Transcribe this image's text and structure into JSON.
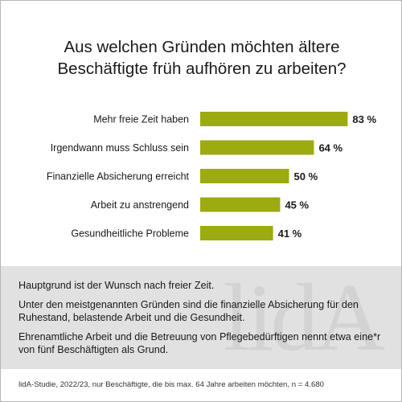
{
  "title": {
    "line1": "Aus welchen Gründen möchten ältere",
    "line2": "Beschäftigte früh aufhören zu arbeiten?"
  },
  "chart_data": {
    "type": "bar",
    "orientation": "horizontal",
    "categories": [
      "Mehr freie Zeit haben",
      "Irgendwann muss Schluss sein",
      "Finanzielle Absicherung erreicht",
      "Arbeit zu anstrengend",
      "Gesundheitliche Probleme"
    ],
    "values": [
      83,
      64,
      50,
      45,
      41
    ],
    "value_labels": [
      "83 %",
      "64 %",
      "50 %",
      "45 %",
      "41 %"
    ],
    "unit": "%",
    "xlim": [
      0,
      100
    ],
    "bar_color": "#9cab0f",
    "grid": false,
    "legend": false
  },
  "summary": {
    "p1": "Hauptgrund ist der Wunsch nach freier Zeit.",
    "p2": "Unter den meistgenannten Gründen sind die finanzielle Absicherung für den Ruhestand, belastende Arbeit und die Gesundheit.",
    "p3": "Ehrenamtliche Arbeit und die Betreuung von Pflegebedürftigen nennt etwa eine*r von fünf Beschäftigten als Grund.",
    "watermark": "lidA"
  },
  "source": "lidA-Studie, 2022/23, nur Beschäftigte, die bis max. 64 Jahre arbeiten möchten, n = 4.680"
}
